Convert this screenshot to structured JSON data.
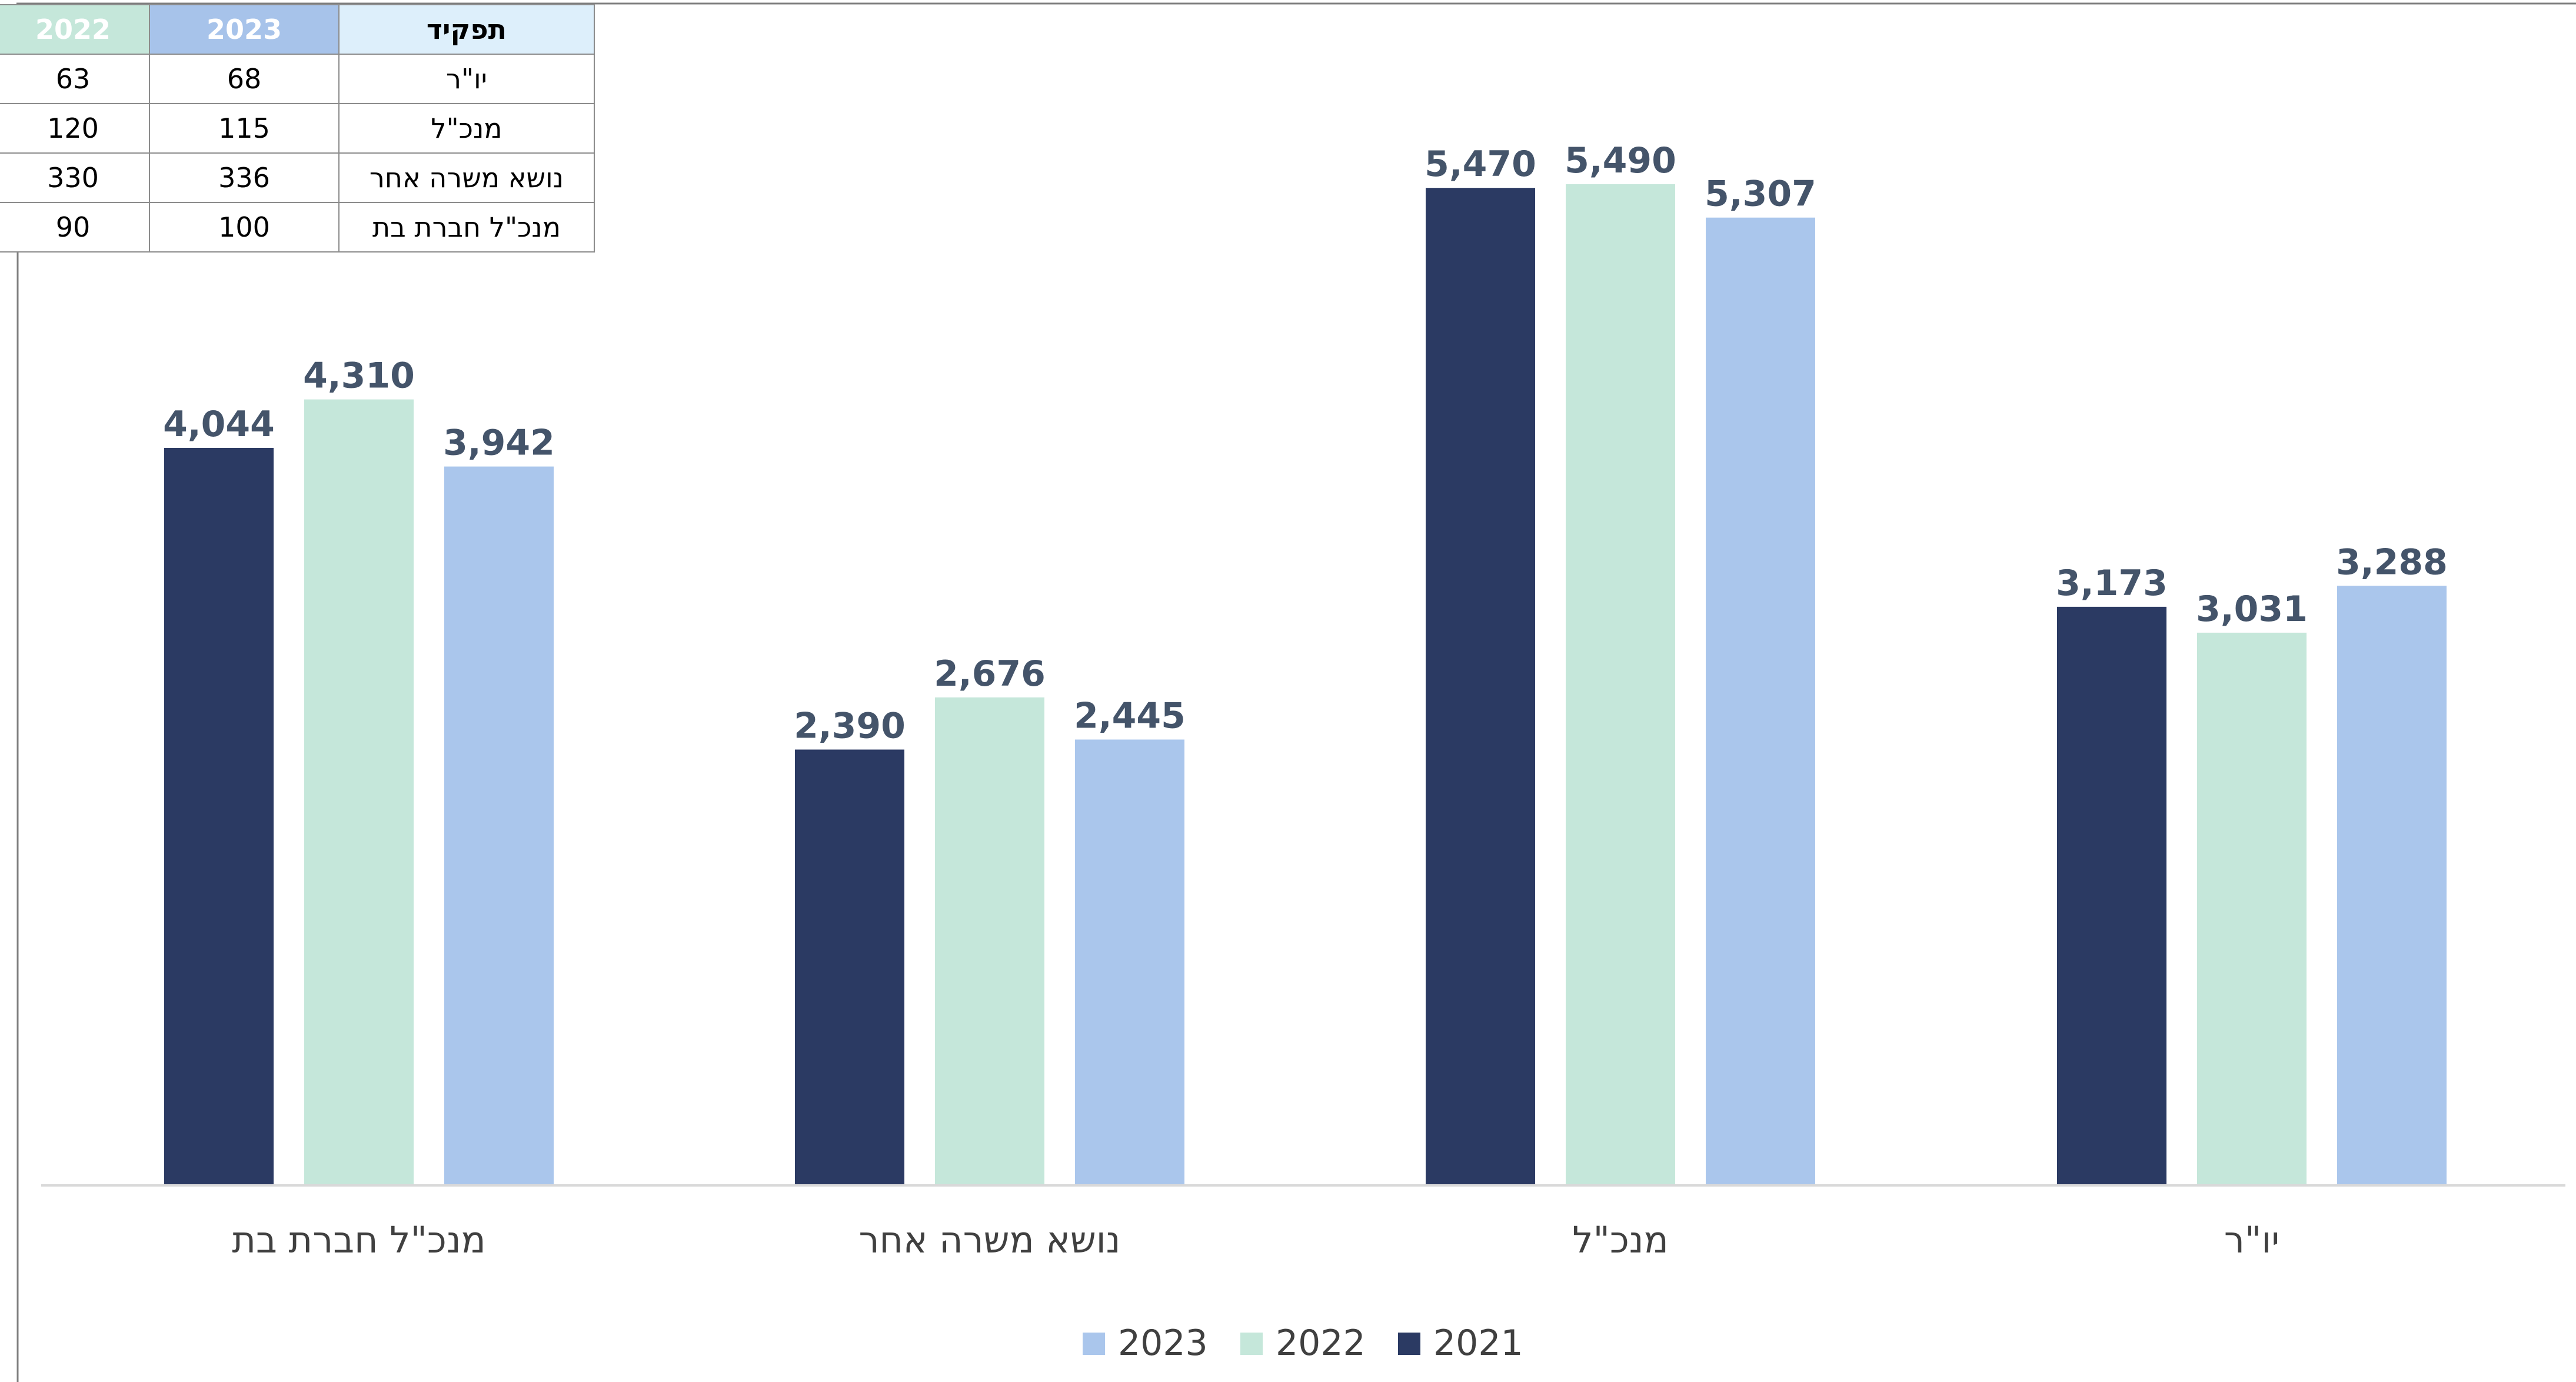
{
  "colors": {
    "2021": "#2b3a63",
    "2022": "#c5e7da",
    "2023": "#aac6ec",
    "data_label": "#44546a",
    "axis_label": "#404040",
    "axis_line": "#d9d9d9",
    "frame": "#7f7f7f"
  },
  "table": {
    "headers": {
      "y2022": "2022",
      "y2023": "2023",
      "role": "תפקיד"
    },
    "rows": [
      {
        "y2022": "63",
        "y2023": "68",
        "role": "יו\"ר"
      },
      {
        "y2022": "120",
        "y2023": "115",
        "role": "מנכ\"ל"
      },
      {
        "y2022": "330",
        "y2023": "336",
        "role": "נושא משרה אחר"
      },
      {
        "y2022": "90",
        "y2023": "100",
        "role": "מנכ\"ל חברת בת"
      }
    ]
  },
  "chart_data": {
    "type": "bar",
    "categories": [
      "מנכ\"ל חברת בת",
      "נושא משרה אחר",
      "מנכ\"ל",
      "יו\"ר"
    ],
    "series": [
      {
        "name": "2021",
        "values": [
          4044,
          2390,
          5470,
          3173
        ]
      },
      {
        "name": "2022",
        "values": [
          4310,
          2676,
          5490,
          3031
        ]
      },
      {
        "name": "2023",
        "values": [
          3942,
          2445,
          5307,
          3288
        ]
      }
    ],
    "data_labels": [
      [
        "4,044",
        "2,390",
        "5,470",
        "3,173"
      ],
      [
        "4,310",
        "2,676",
        "5,490",
        "3,031"
      ],
      [
        "3,942",
        "2,445",
        "5,307",
        "3,288"
      ]
    ],
    "legend_order": [
      "2023",
      "2022",
      "2021"
    ],
    "legend_position": "bottom",
    "grid": false,
    "ylim": [
      0,
      6000
    ],
    "title": "",
    "xlabel": "",
    "ylabel": ""
  }
}
